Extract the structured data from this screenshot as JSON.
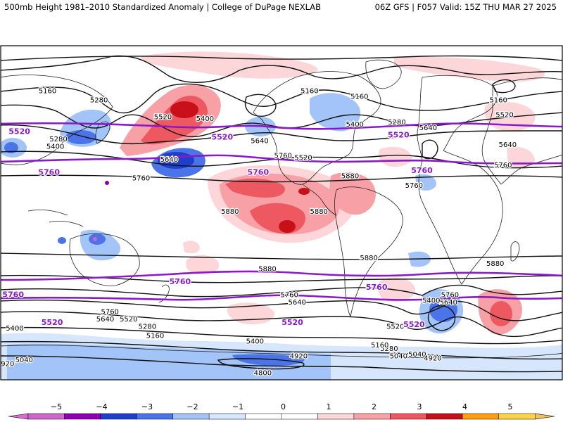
{
  "header": {
    "title": "500mb Height 1981–2010 Standardized Anomaly | College of DuPage NEXLAB",
    "valid": "06Z GFS | F057 Valid: 15Z THU MAR 27 2025"
  },
  "contour_labels": [
    {
      "text": "5280",
      "lon": -92,
      "lat": 61,
      "type": "black"
    },
    {
      "text": "5160",
      "lon": -125,
      "lat": 66,
      "type": "black"
    },
    {
      "text": "5160",
      "lon": 43,
      "lat": 66,
      "type": "black"
    },
    {
      "text": "5160",
      "lon": 75,
      "lat": 63,
      "type": "black"
    },
    {
      "text": "5160",
      "lon": 164,
      "lat": 61,
      "type": "black"
    },
    {
      "text": "5520",
      "lon": 168,
      "lat": 53,
      "type": "black"
    },
    {
      "text": "5520",
      "lon": -51,
      "lat": 52,
      "type": "black"
    },
    {
      "text": "5400",
      "lon": -24,
      "lat": 51,
      "type": "black"
    },
    {
      "text": "5400",
      "lon": 72,
      "lat": 48,
      "type": "black"
    },
    {
      "text": "5280",
      "lon": 99,
      "lat": 49,
      "type": "black"
    },
    {
      "text": "5640",
      "lon": 119,
      "lat": 46,
      "type": "black"
    },
    {
      "text": "5280",
      "lon": -118,
      "lat": 40,
      "type": "black"
    },
    {
      "text": "5640",
      "lon": 170,
      "lat": 37,
      "type": "black"
    },
    {
      "text": "5400",
      "lon": -120,
      "lat": 36,
      "type": "black"
    },
    {
      "text": "5640",
      "lon": 11,
      "lat": 39,
      "type": "black"
    },
    {
      "text": "5760",
      "lon": 26,
      "lat": 31,
      "type": "black"
    },
    {
      "text": "5520",
      "lon": 39,
      "lat": 30,
      "type": "black"
    },
    {
      "text": "5640",
      "lon": -47,
      "lat": 29,
      "type": "black"
    },
    {
      "text": "5760",
      "lon": 167,
      "lat": 26,
      "type": "black"
    },
    {
      "text": "5760",
      "lon": -65,
      "lat": 19,
      "type": "black"
    },
    {
      "text": "5880",
      "lon": 69,
      "lat": 20,
      "type": "black"
    },
    {
      "text": "5760",
      "lon": 110,
      "lat": 15,
      "type": "black"
    },
    {
      "text": "5880",
      "lon": -8,
      "lat": 1,
      "type": "black"
    },
    {
      "text": "5880",
      "lon": 49,
      "lat": 1,
      "type": "black"
    },
    {
      "text": "5880",
      "lon": 81,
      "lat": -24,
      "type": "black"
    },
    {
      "text": "5880",
      "lon": 162,
      "lat": -27,
      "type": "black"
    },
    {
      "text": "5880",
      "lon": 16,
      "lat": -30,
      "type": "black"
    },
    {
      "text": "5760",
      "lon": 30,
      "lat": -44,
      "type": "black"
    },
    {
      "text": "5640",
      "lon": 35,
      "lat": -48,
      "type": "black"
    },
    {
      "text": "5760",
      "lon": 133,
      "lat": -44,
      "type": "black"
    },
    {
      "text": "5640",
      "lon": 132,
      "lat": -48,
      "type": "black"
    },
    {
      "text": "5400",
      "lon": 121,
      "lat": -47,
      "type": "black"
    },
    {
      "text": "5760",
      "lon": -85,
      "lat": -53,
      "type": "black"
    },
    {
      "text": "5640",
      "lon": -88,
      "lat": -57,
      "type": "black"
    },
    {
      "text": "5520",
      "lon": -73,
      "lat": -57,
      "type": "black"
    },
    {
      "text": "5400",
      "lon": -146,
      "lat": -62,
      "type": "black"
    },
    {
      "text": "5280",
      "lon": -61,
      "lat": -61,
      "type": "black"
    },
    {
      "text": "5160",
      "lon": -56,
      "lat": -66,
      "type": "black"
    },
    {
      "text": "5520",
      "lon": 98,
      "lat": -61,
      "type": "black"
    },
    {
      "text": "5400",
      "lon": 8,
      "lat": -69,
      "type": "black"
    },
    {
      "text": "5280",
      "lon": 94,
      "lat": -73,
      "type": "black"
    },
    {
      "text": "5160",
      "lon": 88,
      "lat": -71,
      "type": "black"
    },
    {
      "text": "5040",
      "lon": -140,
      "lat": -79,
      "type": "black"
    },
    {
      "text": "5040",
      "lon": 112,
      "lat": -76,
      "type": "black"
    },
    {
      "text": "5040",
      "lon": 100,
      "lat": -77,
      "type": "black"
    },
    {
      "text": "4920",
      "lon": -152,
      "lat": -81,
      "type": "black"
    },
    {
      "text": "4920",
      "lon": 36,
      "lat": -77,
      "type": "black"
    },
    {
      "text": "4920",
      "lon": 122,
      "lat": -78,
      "type": "black"
    },
    {
      "text": "4800",
      "lon": 13,
      "lat": -86,
      "type": "black"
    },
    {
      "text": "5520",
      "lon": -143,
      "lat": 44,
      "type": "purple"
    },
    {
      "text": "5520",
      "lon": -13,
      "lat": 41,
      "type": "purple"
    },
    {
      "text": "5520",
      "lon": 100,
      "lat": 42,
      "type": "purple"
    },
    {
      "text": "5760",
      "lon": -124,
      "lat": 22,
      "type": "purple"
    },
    {
      "text": "5760",
      "lon": 10,
      "lat": 22,
      "type": "purple"
    },
    {
      "text": "5760",
      "lon": 115,
      "lat": 23,
      "type": "purple"
    },
    {
      "text": "5760",
      "lon": -147,
      "lat": -44,
      "type": "purple"
    },
    {
      "text": "5760",
      "lon": -40,
      "lat": -37,
      "type": "purple"
    },
    {
      "text": "5760",
      "lon": 86,
      "lat": -40,
      "type": "purple"
    },
    {
      "text": "5520",
      "lon": -122,
      "lat": -59,
      "type": "purple"
    },
    {
      "text": "5520",
      "lon": 32,
      "lat": -59,
      "type": "purple"
    },
    {
      "text": "5520",
      "lon": 110,
      "lat": -60,
      "type": "purple"
    }
  ],
  "colorbar": {
    "ticks": [
      "−5",
      "−4",
      "−3",
      "−2",
      "−1",
      "0",
      "1",
      "2",
      "3",
      "4",
      "5"
    ],
    "colors": [
      "#cc66cc",
      "#8f00b0",
      "#1f3ec9",
      "#4a74e8",
      "#a3c4f8",
      "#d6e6fc",
      "#ffffff",
      "#ffffff",
      "#fcd6d8",
      "#f7a0a6",
      "#ee5860",
      "#c8101a",
      "#ff9e0f",
      "#ffd24a"
    ],
    "left_arrow": "#d96ad6",
    "right_arrow": "#f6c15a"
  },
  "colors": {
    "contour": "#111111",
    "purple_contour": "#8a19c9",
    "coast": "#222222",
    "map_border": "#000000"
  }
}
